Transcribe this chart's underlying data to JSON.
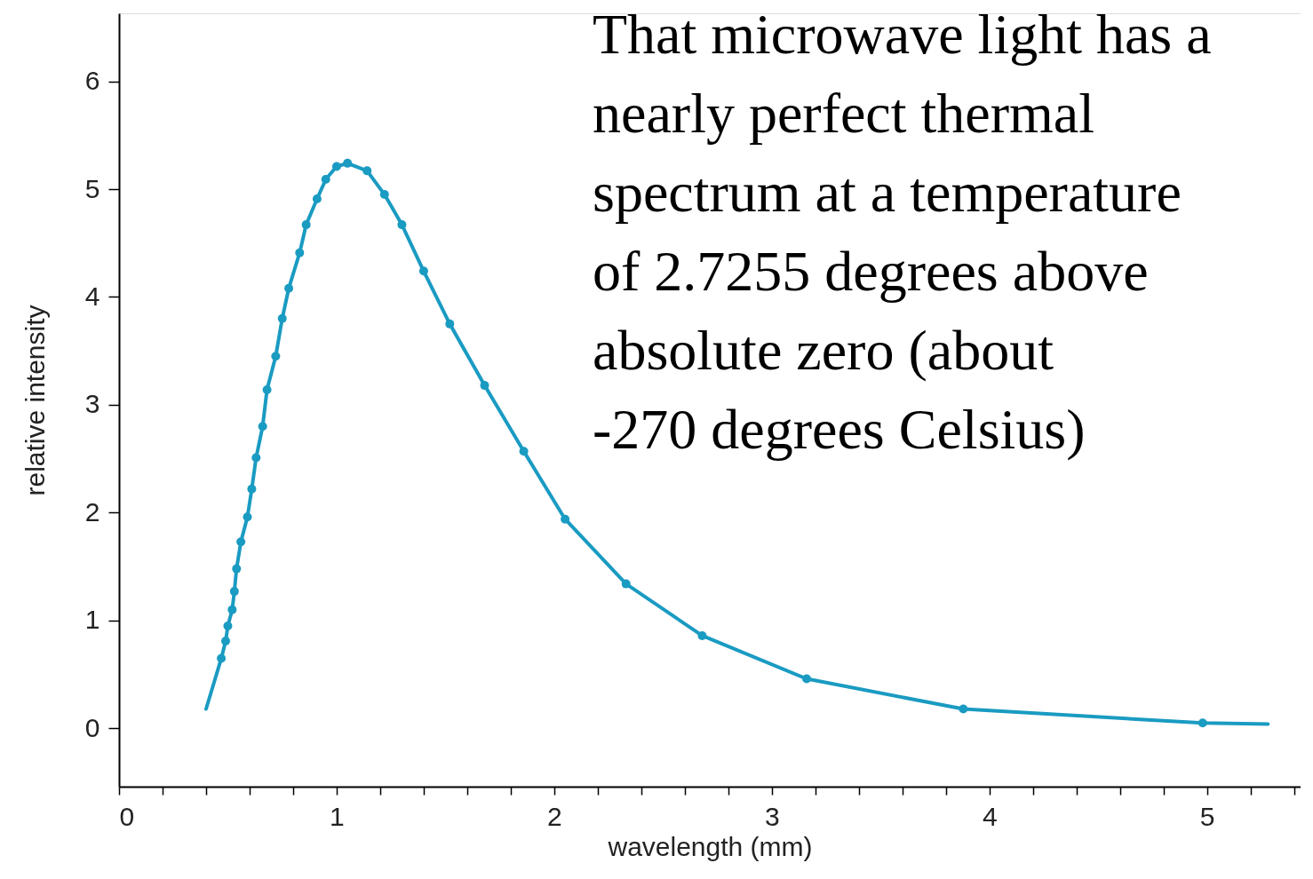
{
  "chart_data": {
    "type": "line",
    "xlabel": "wavelength (mm)",
    "ylabel": "relative intensity",
    "xlim": [
      0,
      5.43
    ],
    "ylim": [
      -0.54,
      6.63
    ],
    "xticks": [
      0,
      {
        "value": 0.2,
        "label": null
      },
      {
        "value": 0.4,
        "label": null
      },
      {
        "value": 0.6,
        "label": null
      },
      {
        "value": 0.8,
        "label": null
      },
      1,
      {
        "value": 1.2,
        "label": null
      },
      {
        "value": 1.4,
        "label": null
      },
      {
        "value": 1.6,
        "label": null
      },
      {
        "value": 1.8,
        "label": null
      },
      2,
      {
        "value": 2.2,
        "label": null
      },
      {
        "value": 2.4,
        "label": null
      },
      {
        "value": 2.6,
        "label": null
      },
      {
        "value": 2.8,
        "label": null
      },
      3,
      {
        "value": 3.2,
        "label": null
      },
      {
        "value": 3.4,
        "label": null
      },
      {
        "value": 3.6,
        "label": null
      },
      {
        "value": 3.8,
        "label": null
      },
      4,
      {
        "value": 4.2,
        "label": null
      },
      {
        "value": 4.4,
        "label": null
      },
      {
        "value": 4.6,
        "label": null
      },
      {
        "value": 4.8,
        "label": null
      },
      5,
      {
        "value": 5.2,
        "label": null
      },
      {
        "value": 5.4,
        "label": null
      }
    ],
    "yticks": [
      0,
      1,
      2,
      3,
      4,
      5,
      6
    ],
    "grid": false,
    "series": [
      {
        "marker": "none",
        "color": "#1a9bc2",
        "x": [
          0.4,
          0.47,
          0.49,
          0.5,
          0.52,
          0.53,
          0.54,
          0.56,
          0.59,
          0.61,
          0.63,
          0.66,
          0.68,
          0.72,
          0.75,
          0.78,
          0.83,
          0.86,
          0.91,
          0.95,
          1.0,
          1.05,
          1.14,
          1.22,
          1.3,
          1.4,
          1.52,
          1.68,
          1.86,
          2.05,
          2.33,
          2.68,
          3.16,
          3.88,
          4.98,
          5.28
        ],
        "values": [
          0.18,
          0.65,
          0.81,
          0.95,
          1.1,
          1.27,
          1.48,
          1.73,
          1.96,
          2.22,
          2.51,
          2.8,
          3.14,
          3.45,
          3.8,
          4.08,
          4.41,
          4.67,
          4.91,
          5.09,
          5.21,
          5.24,
          5.17,
          4.95,
          4.67,
          4.24,
          3.75,
          3.18,
          2.57,
          1.94,
          1.34,
          0.86,
          0.46,
          0.18,
          0.05,
          0.04
        ]
      },
      {
        "type": "scatter",
        "marker": "circle",
        "color": "#1a9bc2",
        "x": [
          0.47,
          0.49,
          0.5,
          0.52,
          0.53,
          0.54,
          0.56,
          0.59,
          0.61,
          0.63,
          0.66,
          0.68,
          0.72,
          0.75,
          0.78,
          0.83,
          0.86,
          0.91,
          0.95,
          1.0,
          1.05,
          1.14,
          1.22,
          1.3,
          1.4,
          1.52,
          1.68,
          1.86,
          2.05,
          2.33,
          2.68,
          3.16,
          3.88,
          4.98
        ],
        "values": [
          0.65,
          0.81,
          0.95,
          1.1,
          1.27,
          1.48,
          1.73,
          1.96,
          2.22,
          2.51,
          2.8,
          3.14,
          3.45,
          3.8,
          4.08,
          4.41,
          4.67,
          4.91,
          5.09,
          5.21,
          5.24,
          5.17,
          4.95,
          4.67,
          4.24,
          3.75,
          3.18,
          2.57,
          1.94,
          1.34,
          0.86,
          0.46,
          0.18,
          0.05
        ]
      }
    ],
    "annotations": [
      "That microwave light has a nearly perfect thermal spectrum at a temperature of 2.7255 degrees above absolute zero (about -270 degrees Celsius)"
    ]
  }
}
